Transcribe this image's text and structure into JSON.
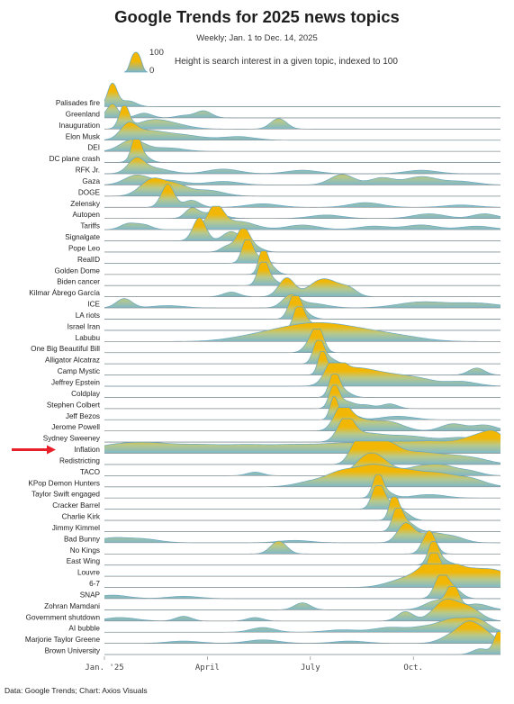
{
  "title": "Google Trends for 2025 news topics",
  "subtitle": "Weekly; Jan. 1 to Dec. 14, 2025",
  "legend": {
    "max_label": "100",
    "min_label": "0",
    "description": "Height is search interest in a given topic, indexed to 100"
  },
  "source": "Data: Google Trends; Chart: Axios Visuals",
  "colors": {
    "peak": "#f2b705",
    "base": "#7fb8c9",
    "outline": "#6aa8bf",
    "arrow": "#e8202a"
  },
  "chart_data": {
    "type": "ridgeline",
    "title": "Google Trends for 2025 news topics",
    "subtitle": "Weekly; Jan. 1 to Dec. 14, 2025",
    "x_axis": {
      "min": 0,
      "max": 50,
      "unit": "weeks since Jan. 1, 2025",
      "ticks": [
        {
          "x": 0,
          "label": "Jan. '25"
        },
        {
          "x": 13,
          "label": "April"
        },
        {
          "x": 26,
          "label": "July"
        },
        {
          "x": 39,
          "label": "Oct."
        }
      ]
    },
    "y_axis": {
      "min": 0,
      "max": 100,
      "label": "Search interest"
    },
    "highlighted_series": "Inflation",
    "series": [
      {
        "name": "Palisades fire",
        "peaks": [
          [
            1,
            100,
            0.6
          ],
          [
            3,
            25,
            1
          ]
        ]
      },
      {
        "name": "Greenland",
        "peaks": [
          [
            1,
            60,
            0.7
          ],
          [
            5,
            20,
            1
          ],
          [
            10,
            10,
            1
          ],
          [
            12.5,
            30,
            1
          ]
        ]
      },
      {
        "name": "Inauguration",
        "peaks": [
          [
            2.5,
            100,
            0.6
          ],
          [
            6,
            35,
            2
          ],
          [
            9,
            15,
            2
          ],
          [
            22,
            45,
            1
          ]
        ]
      },
      {
        "name": "Elon Musk",
        "peaks": [
          [
            3,
            55,
            1
          ],
          [
            5,
            30,
            2
          ],
          [
            9,
            25,
            3
          ],
          [
            17,
            15,
            2
          ]
        ]
      },
      {
        "name": "DEI",
        "peaks": [
          [
            3.5,
            50,
            1.5
          ],
          [
            8,
            15,
            2
          ]
        ]
      },
      {
        "name": "DC plane crash",
        "peaks": [
          [
            4,
            100,
            0.5
          ],
          [
            4.5,
            40,
            1
          ]
        ]
      },
      {
        "name": "RFK Jr.",
        "peaks": [
          [
            4,
            55,
            1
          ],
          [
            6,
            25,
            2
          ],
          [
            15,
            20,
            2
          ],
          [
            25,
            15,
            2
          ],
          [
            40,
            15,
            2
          ]
        ]
      },
      {
        "name": "Gaza",
        "peaks": [
          [
            4,
            40,
            1.5
          ],
          [
            8,
            20,
            2
          ],
          [
            15,
            15,
            2
          ],
          [
            30,
            45,
            1.5
          ],
          [
            35,
            30,
            1.5
          ],
          [
            40,
            35,
            2
          ],
          [
            45,
            15,
            2
          ]
        ]
      },
      {
        "name": "DOGE",
        "peaks": [
          [
            6,
            70,
            1.5
          ],
          [
            9,
            45,
            1.5
          ],
          [
            13,
            25,
            2
          ]
        ]
      },
      {
        "name": "Zelensky",
        "peaks": [
          [
            8,
            100,
            0.8
          ],
          [
            11,
            30,
            1
          ],
          [
            20,
            15,
            2
          ],
          [
            33,
            20,
            2
          ],
          [
            45,
            10,
            2
          ]
        ]
      },
      {
        "name": "Autopen",
        "peaks": [
          [
            11,
            40,
            0.8
          ],
          [
            13.5,
            25,
            1.5
          ],
          [
            28,
            15,
            2
          ],
          [
            41,
            20,
            2
          ],
          [
            48,
            20,
            1.5
          ]
        ]
      },
      {
        "name": "Tariffs",
        "peaks": [
          [
            3,
            25,
            1
          ],
          [
            5,
            20,
            1
          ],
          [
            14,
            100,
            1
          ],
          [
            17,
            35,
            2
          ],
          [
            25,
            20,
            2
          ],
          [
            34,
            15,
            2
          ],
          [
            40,
            20,
            2
          ],
          [
            47,
            15,
            2
          ]
        ]
      },
      {
        "name": "Signalgate",
        "peaks": [
          [
            12,
            100,
            0.8
          ],
          [
            16,
            40,
            1
          ]
        ]
      },
      {
        "name": "Pope Leo",
        "peaks": [
          [
            17.5,
            100,
            0.8
          ],
          [
            15.5,
            25,
            0.8
          ],
          [
            19,
            20,
            1
          ]
        ]
      },
      {
        "name": "RealID",
        "peaks": [
          [
            18,
            100,
            0.6
          ],
          [
            19,
            30,
            1
          ]
        ]
      },
      {
        "name": "Golden Dome",
        "peaks": [
          [
            20,
            100,
            0.5
          ],
          [
            20.8,
            40,
            0.8
          ]
        ]
      },
      {
        "name": "Biden cancer",
        "peaks": [
          [
            20,
            100,
            0.6
          ],
          [
            20.8,
            30,
            1
          ]
        ]
      },
      {
        "name": "Kilmar Ábrego García",
        "peaks": [
          [
            16,
            20,
            1
          ],
          [
            23,
            80,
            1
          ],
          [
            27,
            55,
            1.5
          ],
          [
            29,
            40,
            1.5
          ],
          [
            31,
            25,
            1
          ]
        ]
      },
      {
        "name": "ICE",
        "peaks": [
          [
            2.5,
            40,
            1
          ],
          [
            8,
            10,
            2
          ],
          [
            23.5,
            50,
            1
          ],
          [
            26,
            20,
            2
          ],
          [
            40,
            25,
            3
          ],
          [
            47,
            20,
            3
          ]
        ]
      },
      {
        "name": "LA riots",
        "peaks": [
          [
            24,
            100,
            0.7
          ],
          [
            25,
            30,
            1
          ]
        ]
      },
      {
        "name": "Israel Iran",
        "peaks": [
          [
            24.5,
            100,
            0.6
          ],
          [
            25.5,
            40,
            1
          ]
        ]
      },
      {
        "name": "Labubu",
        "peaks": [
          [
            18,
            15,
            3
          ],
          [
            22,
            30,
            3
          ],
          [
            26,
            50,
            3
          ],
          [
            30,
            40,
            3
          ],
          [
            34,
            25,
            3
          ],
          [
            38,
            15,
            3
          ]
        ]
      },
      {
        "name": "One Big Beautiful Bill",
        "peaks": [
          [
            27,
            100,
            0.7
          ],
          [
            26,
            40,
            0.8
          ]
        ]
      },
      {
        "name": "Alligator Alcatraz",
        "peaks": [
          [
            27,
            100,
            0.6
          ],
          [
            28,
            30,
            1
          ]
        ]
      },
      {
        "name": "Camp Mystic",
        "peaks": [
          [
            27.5,
            100,
            0.5
          ],
          [
            28.5,
            25,
            1
          ],
          [
            47,
            30,
            1
          ]
        ]
      },
      {
        "name": "Jeffrey Epstein",
        "peaks": [
          [
            29,
            100,
            1
          ],
          [
            31,
            60,
            2
          ],
          [
            34,
            40,
            2
          ],
          [
            37,
            30,
            2
          ],
          [
            40,
            25,
            2
          ],
          [
            45,
            20,
            2
          ]
        ]
      },
      {
        "name": "Coldplay",
        "peaks": [
          [
            29,
            100,
            0.6
          ],
          [
            30,
            30,
            1
          ]
        ]
      },
      {
        "name": "Stephen Colbert",
        "peaks": [
          [
            29,
            100,
            0.6
          ],
          [
            30.5,
            30,
            1
          ],
          [
            33,
            15,
            1
          ],
          [
            36,
            20,
            1
          ]
        ]
      },
      {
        "name": "Jeff Bezos",
        "peaks": [
          [
            29,
            100,
            0.5
          ],
          [
            31,
            25,
            1
          ],
          [
            37,
            15,
            2
          ]
        ]
      },
      {
        "name": "Jerome Powell",
        "peaks": [
          [
            30,
            100,
            1
          ],
          [
            32,
            45,
            1.5
          ],
          [
            35,
            30,
            1.5
          ],
          [
            37,
            20,
            1.5
          ],
          [
            44,
            30,
            1.5
          ],
          [
            48,
            25,
            1.5
          ]
        ]
      },
      {
        "name": "Sydney Sweeney",
        "peaks": [
          [
            30.5,
            100,
            1
          ],
          [
            33,
            35,
            2
          ],
          [
            37,
            20,
            2
          ],
          [
            40,
            15,
            2
          ],
          [
            45,
            20,
            2
          ]
        ]
      },
      {
        "name": "Inflation",
        "peaks": [
          [
            1,
            30,
            3
          ],
          [
            6,
            35,
            3
          ],
          [
            12,
            30,
            3
          ],
          [
            18,
            30,
            3
          ],
          [
            24,
            30,
            3
          ],
          [
            30,
            35,
            3
          ],
          [
            36,
            40,
            3
          ],
          [
            42,
            45,
            3
          ],
          [
            47,
            55,
            2
          ],
          [
            49.5,
            65,
            1.5
          ]
        ]
      },
      {
        "name": "Redistricting",
        "peaks": [
          [
            32,
            100,
            1
          ],
          [
            34,
            70,
            1.2
          ],
          [
            36,
            55,
            1.2
          ],
          [
            38,
            40,
            2
          ],
          [
            41,
            30,
            2
          ],
          [
            44,
            25,
            2
          ],
          [
            47,
            20,
            2
          ]
        ]
      },
      {
        "name": "TACO",
        "peaks": [
          [
            19,
            15,
            1
          ],
          [
            33,
            70,
            1.5
          ],
          [
            35,
            50,
            1.5
          ],
          [
            40,
            40,
            2
          ],
          [
            43,
            30,
            1.5
          ],
          [
            46,
            20,
            1.5
          ]
        ]
      },
      {
        "name": "KPop Demon Hunters",
        "peaks": [
          [
            26,
            20,
            2
          ],
          [
            30,
            60,
            2
          ],
          [
            34,
            80,
            2
          ],
          [
            38,
            60,
            2
          ],
          [
            42,
            50,
            2
          ],
          [
            46,
            35,
            2
          ]
        ]
      },
      {
        "name": "Taylor Swift engaged",
        "peaks": [
          [
            34.5,
            100,
            0.6
          ],
          [
            35.5,
            25,
            1
          ],
          [
            41,
            15,
            2
          ]
        ]
      },
      {
        "name": "Cracker Barrel",
        "peaks": [
          [
            34.5,
            100,
            0.7
          ],
          [
            35.5,
            30,
            1
          ]
        ]
      },
      {
        "name": "Charlie Kirk",
        "peaks": [
          [
            36.5,
            100,
            0.5
          ],
          [
            37.5,
            40,
            1
          ]
        ]
      },
      {
        "name": "Jimmy Kimmel",
        "peaks": [
          [
            37,
            100,
            0.6
          ],
          [
            38.2,
            40,
            1
          ]
        ]
      },
      {
        "name": "Bad Bunny",
        "peaks": [
          [
            1,
            20,
            2
          ],
          [
            5,
            15,
            2
          ],
          [
            24,
            10,
            2
          ],
          [
            38,
            80,
            1
          ],
          [
            41,
            40,
            1.5
          ],
          [
            44,
            25,
            1.5
          ]
        ]
      },
      {
        "name": "No Kings",
        "peaks": [
          [
            22,
            55,
            1
          ],
          [
            41,
            100,
            0.8
          ]
        ]
      },
      {
        "name": "East Wing",
        "peaks": [
          [
            41.5,
            100,
            0.6
          ],
          [
            42.5,
            25,
            1
          ]
        ]
      },
      {
        "name": "Louvre",
        "peaks": [
          [
            41.5,
            100,
            0.7
          ],
          [
            42.5,
            30,
            1
          ]
        ]
      },
      {
        "name": "6-7",
        "peaks": [
          [
            37,
            20,
            2
          ],
          [
            40,
            45,
            2
          ],
          [
            42,
            80,
            1.5
          ],
          [
            44,
            60,
            2
          ],
          [
            47,
            45,
            2
          ],
          [
            50,
            55,
            2
          ]
        ]
      },
      {
        "name": "SNAP",
        "peaks": [
          [
            1,
            15,
            2
          ],
          [
            10,
            10,
            2
          ],
          [
            42.5,
            100,
            0.8
          ],
          [
            44,
            45,
            1
          ]
        ]
      },
      {
        "name": "Zohran Mamdani",
        "peaks": [
          [
            25,
            30,
            1
          ],
          [
            44,
            100,
            0.7
          ],
          [
            42,
            40,
            1.5
          ],
          [
            47,
            25,
            1.5
          ]
        ]
      },
      {
        "name": "Government shutdown",
        "peaks": [
          [
            2,
            15,
            2
          ],
          [
            10,
            20,
            1
          ],
          [
            19,
            15,
            1
          ],
          [
            38,
            40,
            1
          ],
          [
            43,
            85,
            1.5
          ],
          [
            46,
            55,
            1.5
          ]
        ]
      },
      {
        "name": "AI bubble",
        "peaks": [
          [
            20,
            20,
            1.5
          ],
          [
            30,
            10,
            2
          ],
          [
            36,
            20,
            2
          ],
          [
            41,
            25,
            2
          ],
          [
            44,
            45,
            1.5
          ],
          [
            47,
            55,
            1.5
          ]
        ]
      },
      {
        "name": "Marjorie Taylor Greene",
        "peaks": [
          [
            10,
            10,
            2
          ],
          [
            20,
            15,
            2
          ],
          [
            31,
            10,
            2
          ],
          [
            44,
            35,
            1.5
          ],
          [
            46,
            70,
            1.2
          ],
          [
            48,
            45,
            1.2
          ]
        ]
      },
      {
        "name": "Brown University",
        "peaks": [
          [
            47.5,
            25,
            1
          ],
          [
            49.8,
            100,
            0.6
          ]
        ]
      }
    ]
  }
}
